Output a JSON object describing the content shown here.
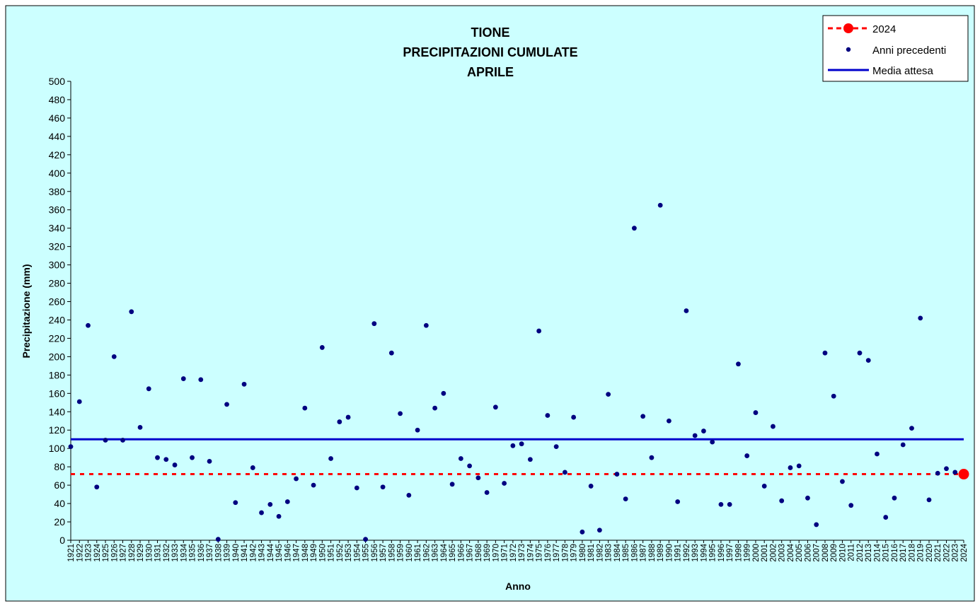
{
  "chart_data": {
    "type": "scatter",
    "title": [
      "TIONE",
      "PRECIPITAZIONI CUMULATE",
      "APRILE"
    ],
    "xlabel": "Anno",
    "ylabel": "Precipitazione (mm)",
    "ylim": [
      0,
      500
    ],
    "y_ticks": [
      0,
      20,
      40,
      60,
      80,
      100,
      120,
      140,
      160,
      180,
      200,
      220,
      240,
      260,
      280,
      300,
      320,
      340,
      360,
      380,
      400,
      420,
      440,
      460,
      480,
      500
    ],
    "grid": false,
    "legend_position": "top-right",
    "colors": {
      "background": "#ccffff",
      "previous_years": "#000080",
      "current_year": "#ff0000",
      "mean_line": "#0000cc"
    },
    "series": [
      {
        "name": "2024",
        "style": "current-year-red-dot-dashed-line",
        "x": [
          2024
        ],
        "y": [
          72
        ]
      },
      {
        "name": "Anni precedenti",
        "style": "navy-dots",
        "x": [
          1921,
          1922,
          1923,
          1924,
          1925,
          1926,
          1927,
          1928,
          1929,
          1930,
          1931,
          1932,
          1933,
          1934,
          1935,
          1936,
          1937,
          1938,
          1939,
          1940,
          1941,
          1942,
          1943,
          1944,
          1945,
          1946,
          1947,
          1948,
          1949,
          1950,
          1951,
          1952,
          1953,
          1954,
          1955,
          1956,
          1957,
          1958,
          1959,
          1960,
          1961,
          1962,
          1963,
          1964,
          1965,
          1966,
          1967,
          1968,
          1969,
          1970,
          1971,
          1972,
          1973,
          1974,
          1975,
          1976,
          1977,
          1978,
          1979,
          1980,
          1981,
          1982,
          1983,
          1984,
          1985,
          1986,
          1987,
          1988,
          1989,
          1990,
          1991,
          1992,
          1993,
          1994,
          1995,
          1996,
          1997,
          1998,
          1999,
          2000,
          2001,
          2002,
          2003,
          2004,
          2005,
          2006,
          2007,
          2008,
          2009,
          2010,
          2011,
          2012,
          2013,
          2014,
          2015,
          2016,
          2017,
          2018,
          2019,
          2020,
          2021,
          2022,
          2023
        ],
        "y": [
          102,
          151,
          234,
          58,
          109,
          200,
          109,
          249,
          123,
          165,
          90,
          88,
          82,
          176,
          90,
          175,
          86,
          1,
          148,
          41,
          170,
          79,
          30,
          39,
          26,
          42,
          67,
          144,
          60,
          210,
          89,
          129,
          134,
          57,
          1,
          236,
          58,
          204,
          138,
          49,
          120,
          234,
          144,
          160,
          61,
          89,
          81,
          68,
          52,
          145,
          62,
          103,
          105,
          88,
          228,
          136,
          102,
          74,
          134,
          9,
          59,
          11,
          159,
          72,
          45,
          340,
          135,
          90,
          365,
          130,
          42,
          250,
          114,
          119,
          107,
          39,
          39,
          192,
          92,
          139,
          59,
          124,
          43,
          79,
          81,
          46,
          17,
          204,
          157,
          64,
          38,
          204,
          196,
          94,
          25,
          46,
          104,
          122,
          242,
          44,
          73,
          78,
          74
        ]
      },
      {
        "name": "Media attesa",
        "style": "blue-line",
        "value": 110
      }
    ],
    "x_categories": [
      "1921",
      "1922",
      "1923",
      "1924",
      "1925",
      "1926",
      "1927",
      "1928",
      "1929",
      "1930",
      "1931",
      "1932",
      "1933",
      "1934",
      "1935",
      "1936",
      "1937",
      "1938",
      "1939",
      "1940",
      "1941",
      "1942",
      "1943",
      "1944",
      "1945",
      "1946",
      "1947",
      "1948",
      "1949",
      "1950",
      "1951",
      "1952",
      "1953",
      "1954",
      "1955",
      "1956",
      "1957",
      "1958",
      "1959",
      "1960",
      "1961",
      "1962",
      "1963",
      "1964",
      "1965",
      "1966",
      "1967",
      "1968",
      "1969",
      "1970",
      "1971",
      "1972",
      "1973",
      "1974",
      "1975",
      "1976",
      "1977",
      "1978",
      "1979",
      "1980",
      "1981",
      "1982",
      "1983",
      "1984",
      "1985",
      "1986",
      "1987",
      "1988",
      "1989",
      "1990",
      "1991",
      "1992",
      "1993",
      "1994",
      "1995",
      "1996",
      "1997",
      "1998",
      "1999",
      "2000",
      "2001",
      "2002",
      "2003",
      "2004",
      "2005",
      "2006",
      "2007",
      "2008",
      "2009",
      "2010",
      "2011",
      "2012",
      "2013",
      "2014",
      "2015",
      "2016",
      "2017",
      "2018",
      "2019",
      "2020",
      "2021",
      "2022",
      "2023",
      "2024"
    ]
  }
}
